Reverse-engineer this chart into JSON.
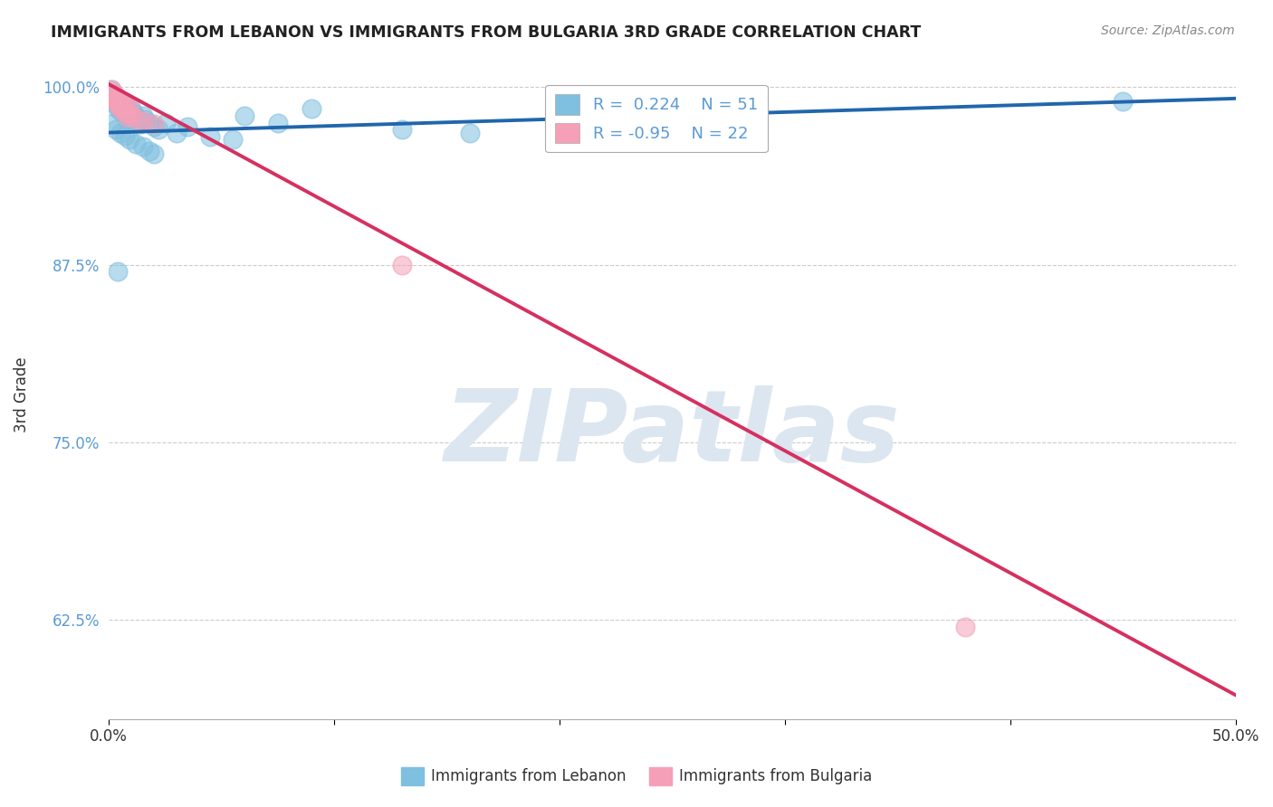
{
  "title": "IMMIGRANTS FROM LEBANON VS IMMIGRANTS FROM BULGARIA 3RD GRADE CORRELATION CHART",
  "source": "Source: ZipAtlas.com",
  "ylabel": "3rd Grade",
  "legend_label1": "Immigrants from Lebanon",
  "legend_label2": "Immigrants from Bulgaria",
  "R1": 0.224,
  "N1": 51,
  "R2": -0.95,
  "N2": 22,
  "xlim": [
    0.0,
    0.5
  ],
  "ylim": [
    0.555,
    1.012
  ],
  "xticks": [
    0.0,
    0.1,
    0.2,
    0.3,
    0.4,
    0.5
  ],
  "xticklabels": [
    "0.0%",
    "",
    "",
    "",
    "",
    "50.0%"
  ],
  "yticks": [
    0.625,
    0.75,
    0.875,
    1.0
  ],
  "yticklabels": [
    "62.5%",
    "75.0%",
    "87.5%",
    "100.0%"
  ],
  "color_blue": "#7fbfdf",
  "color_pink": "#f5a0b8",
  "color_blue_line": "#2166ac",
  "color_pink_line": "#d63060",
  "watermark_color": "#dce6f0",
  "background": "#ffffff",
  "blue_dots_x": [
    0.001,
    0.002,
    0.002,
    0.003,
    0.003,
    0.004,
    0.004,
    0.005,
    0.005,
    0.006,
    0.006,
    0.007,
    0.007,
    0.008,
    0.008,
    0.009,
    0.01,
    0.01,
    0.011,
    0.012,
    0.013,
    0.014,
    0.015,
    0.016,
    0.018,
    0.02,
    0.022,
    0.025,
    0.03,
    0.035,
    0.002,
    0.003,
    0.005,
    0.007,
    0.009,
    0.012,
    0.015,
    0.018,
    0.02,
    0.06,
    0.075,
    0.09,
    0.13,
    0.16,
    0.2,
    0.23,
    0.045,
    0.055,
    0.25,
    0.45,
    0.004
  ],
  "blue_dots_y": [
    0.998,
    0.995,
    0.99,
    0.988,
    0.993,
    0.985,
    0.992,
    0.988,
    0.983,
    0.99,
    0.985,
    0.982,
    0.988,
    0.98,
    0.977,
    0.984,
    0.978,
    0.985,
    0.982,
    0.979,
    0.976,
    0.974,
    0.98,
    0.977,
    0.975,
    0.972,
    0.97,
    0.975,
    0.968,
    0.972,
    0.975,
    0.97,
    0.968,
    0.966,
    0.963,
    0.96,
    0.958,
    0.955,
    0.953,
    0.98,
    0.975,
    0.985,
    0.97,
    0.968,
    0.975,
    0.972,
    0.965,
    0.963,
    0.97,
    0.99,
    0.87
  ],
  "pink_dots_x": [
    0.001,
    0.002,
    0.002,
    0.003,
    0.003,
    0.004,
    0.004,
    0.005,
    0.005,
    0.006,
    0.006,
    0.007,
    0.007,
    0.008,
    0.008,
    0.009,
    0.01,
    0.012,
    0.015,
    0.02,
    0.13,
    0.38
  ],
  "pink_dots_y": [
    0.998,
    0.996,
    0.993,
    0.99,
    0.994,
    0.988,
    0.991,
    0.987,
    0.985,
    0.99,
    0.986,
    0.984,
    0.989,
    0.982,
    0.979,
    0.985,
    0.98,
    0.978,
    0.976,
    0.974,
    0.875,
    0.62
  ],
  "blue_line_x": [
    0.0,
    0.5
  ],
  "blue_line_y": [
    0.968,
    0.992
  ],
  "pink_line_x": [
    0.0,
    0.5
  ],
  "pink_line_y": [
    1.002,
    0.572
  ]
}
